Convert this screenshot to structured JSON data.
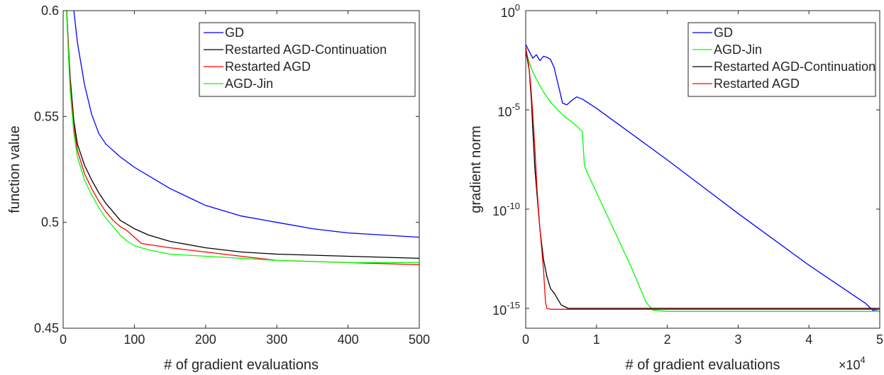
{
  "chart_data": [
    {
      "type": "line",
      "xlabel": "# of gradient evaluations",
      "ylabel": "function value",
      "xlim": [
        0,
        500
      ],
      "ylim": [
        0.45,
        0.6
      ],
      "xticks": [
        "0",
        "100",
        "200",
        "300",
        "400",
        "500"
      ],
      "yticks": [
        "0.45",
        "0.5",
        "0.55",
        "0.6"
      ],
      "xtick_values": [
        0,
        100,
        200,
        300,
        400,
        500
      ],
      "ytick_values": [
        0.45,
        0.5,
        0.55,
        0.6
      ],
      "legend_position": "top-right",
      "series": [
        {
          "name": "GD",
          "color": "#0000ff",
          "x": [
            0,
            5,
            10,
            15,
            20,
            30,
            40,
            50,
            60,
            80,
            100,
            150,
            200,
            250,
            300,
            350,
            400,
            450,
            500
          ],
          "y": [
            0.62,
            0.62,
            0.615,
            0.6,
            0.585,
            0.565,
            0.551,
            0.542,
            0.537,
            0.531,
            0.526,
            0.516,
            0.508,
            0.503,
            0.5,
            0.497,
            0.495,
            0.494,
            0.493
          ]
        },
        {
          "name": "Restarted AGD-Continuation",
          "color": "#000000",
          "x": [
            0,
            3,
            5,
            8,
            10,
            15,
            20,
            30,
            40,
            50,
            60,
            70,
            80,
            90,
            100,
            120,
            150,
            200,
            250,
            300,
            400,
            500
          ],
          "y": [
            0.62,
            0.62,
            0.6,
            0.58,
            0.568,
            0.548,
            0.537,
            0.527,
            0.52,
            0.514,
            0.509,
            0.505,
            0.501,
            0.499,
            0.497,
            0.494,
            0.491,
            0.488,
            0.486,
            0.485,
            0.484,
            0.483
          ]
        },
        {
          "name": "Restarted AGD",
          "color": "#ff0000",
          "x": [
            0,
            3,
            5,
            8,
            10,
            15,
            20,
            30,
            40,
            50,
            60,
            70,
            80,
            90,
            100,
            110,
            150,
            200,
            250,
            300,
            400,
            500
          ],
          "y": [
            0.62,
            0.62,
            0.6,
            0.578,
            0.565,
            0.545,
            0.534,
            0.523,
            0.516,
            0.51,
            0.505,
            0.501,
            0.498,
            0.496,
            0.493,
            0.49,
            0.488,
            0.486,
            0.484,
            0.482,
            0.481,
            0.48
          ]
        },
        {
          "name": "AGD-Jin",
          "color": "#00ff00",
          "x": [
            0,
            3,
            5,
            8,
            10,
            15,
            20,
            30,
            40,
            50,
            60,
            70,
            80,
            90,
            100,
            120,
            150,
            200,
            250,
            300,
            400,
            500
          ],
          "y": [
            0.62,
            0.62,
            0.598,
            0.575,
            0.562,
            0.542,
            0.531,
            0.52,
            0.513,
            0.507,
            0.502,
            0.498,
            0.494,
            0.491,
            0.489,
            0.487,
            0.485,
            0.484,
            0.483,
            0.482,
            0.481,
            0.481
          ]
        }
      ]
    },
    {
      "type": "line",
      "xlabel": "# of gradient evaluations",
      "ylabel": "gradient norm",
      "yscale": "log",
      "xlim": [
        0,
        50000
      ],
      "ylim": [
        1e-16,
        1
      ],
      "xticks": [
        "0",
        "1",
        "2",
        "3",
        "4",
        "5"
      ],
      "xtick_values": [
        0,
        10000,
        20000,
        30000,
        40000,
        50000
      ],
      "x_multiplier": {
        "base": "×10",
        "exponent": "4"
      },
      "yticks": [
        {
          "base": "10",
          "exponent": "0"
        },
        {
          "base": "10",
          "exponent": "-5"
        },
        {
          "base": "10",
          "exponent": "-10"
        },
        {
          "base": "10",
          "exponent": "-15"
        }
      ],
      "ytick_values": [
        1,
        1e-05,
        1e-10,
        1e-15
      ],
      "legend_position": "top-right",
      "series": [
        {
          "name": "GD",
          "color": "#0000ff",
          "x": [
            0,
            300,
            1000,
            1500,
            2000,
            2500,
            3000,
            3500,
            4000,
            4500,
            4800,
            5200,
            5800,
            6500,
            7200,
            8000,
            10000,
            20000,
            30000,
            40000,
            48000,
            49000,
            50000
          ],
          "y": [
            0.02,
            0.012,
            0.004,
            0.006,
            0.003,
            0.005,
            0.0045,
            0.0035,
            0.0014,
            0.00025,
            9e-05,
            2.2e-05,
            1.8e-05,
            3e-05,
            4.5e-05,
            3.5e-05,
            1.2e-05,
            3e-08,
            6e-11,
            1.5e-13,
            1.8e-15,
            8e-16,
            9e-16
          ]
        },
        {
          "name": "AGD-Jin",
          "color": "#00ff00",
          "x": [
            0,
            500,
            1000,
            1500,
            2500,
            3500,
            4500,
            5500,
            6500,
            7500,
            8000,
            8300,
            9000,
            12000,
            15000,
            17000,
            18000,
            20000,
            30000,
            40000,
            50000
          ],
          "y": [
            0.01,
            0.0025,
            0.0008,
            0.00035,
            8e-05,
            2.5e-05,
            1e-05,
            4.5e-06,
            2.5e-06,
            1.2e-06,
            8e-07,
            1.5e-08,
            4e-09,
            2e-11,
            1e-13,
            2e-15,
            8e-16,
            7e-16,
            7e-16,
            7e-16,
            7e-16
          ]
        },
        {
          "name": "Restarted AGD-Continuation",
          "color": "#000000",
          "x": [
            0,
            500,
            800,
            1000,
            1300,
            1600,
            2000,
            2500,
            3000,
            3500,
            4000,
            4500,
            5000,
            6000,
            10000,
            20000,
            30000,
            40000,
            50000
          ],
          "y": [
            0.01,
            0.001,
            3e-05,
            1e-06,
            1e-08,
            5e-10,
            1e-11,
            3e-13,
            4e-14,
            1e-14,
            6e-15,
            3e-15,
            1.5e-15,
            1e-15,
            1e-15,
            1e-15,
            1e-15,
            1e-15,
            1e-15
          ]
        },
        {
          "name": "Restarted AGD",
          "color": "#ff0000",
          "x": [
            0,
            400,
            700,
            1000,
            1300,
            1600,
            2000,
            2500,
            2800,
            3000,
            3500,
            5000,
            10000,
            20000,
            30000,
            40000,
            50000
          ],
          "y": [
            0.015,
            0.002,
            0.0002,
            6e-06,
            1e-07,
            1e-09,
            1e-11,
            1e-13,
            2e-15,
            1e-15,
            9e-16,
            9e-16,
            9e-16,
            9e-16,
            9e-16,
            9e-16,
            9e-16
          ]
        }
      ]
    }
  ]
}
